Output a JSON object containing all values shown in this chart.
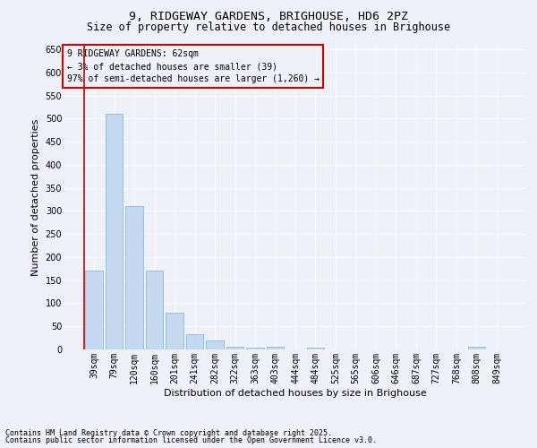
{
  "title": "9, RIDGEWAY GARDENS, BRIGHOUSE, HD6 2PZ",
  "subtitle": "Size of property relative to detached houses in Brighouse",
  "xlabel": "Distribution of detached houses by size in Brighouse",
  "ylabel": "Number of detached properties",
  "footnote1": "Contains HM Land Registry data © Crown copyright and database right 2025.",
  "footnote2": "Contains public sector information licensed under the Open Government Licence v3.0.",
  "annotation_line1": "9 RIDGEWAY GARDENS: 62sqm",
  "annotation_line2": "← 3% of detached houses are smaller (39)",
  "annotation_line3": "97% of semi-detached houses are larger (1,260) →",
  "bar_color": "#c5d9f1",
  "bar_edge_color": "#7bafd4",
  "vline_color": "#cc0000",
  "annotation_box_color": "#cc0000",
  "background_color": "#eef2f8",
  "categories": [
    "39sqm",
    "79sqm",
    "120sqm",
    "160sqm",
    "201sqm",
    "241sqm",
    "282sqm",
    "322sqm",
    "363sqm",
    "403sqm",
    "444sqm",
    "484sqm",
    "525sqm",
    "565sqm",
    "606sqm",
    "646sqm",
    "687sqm",
    "727sqm",
    "768sqm",
    "808sqm",
    "849sqm"
  ],
  "values": [
    170,
    510,
    310,
    170,
    80,
    33,
    20,
    5,
    3,
    5,
    0,
    3,
    0,
    0,
    0,
    0,
    0,
    0,
    0,
    5,
    0
  ],
  "ylim": [
    0,
    660
  ],
  "yticks": [
    0,
    50,
    100,
    150,
    200,
    250,
    300,
    350,
    400,
    450,
    500,
    550,
    600,
    650
  ],
  "title_fontsize": 9.5,
  "subtitle_fontsize": 8.5,
  "tick_fontsize": 7,
  "label_fontsize": 8,
  "annotation_fontsize": 7,
  "footnote_fontsize": 6
}
